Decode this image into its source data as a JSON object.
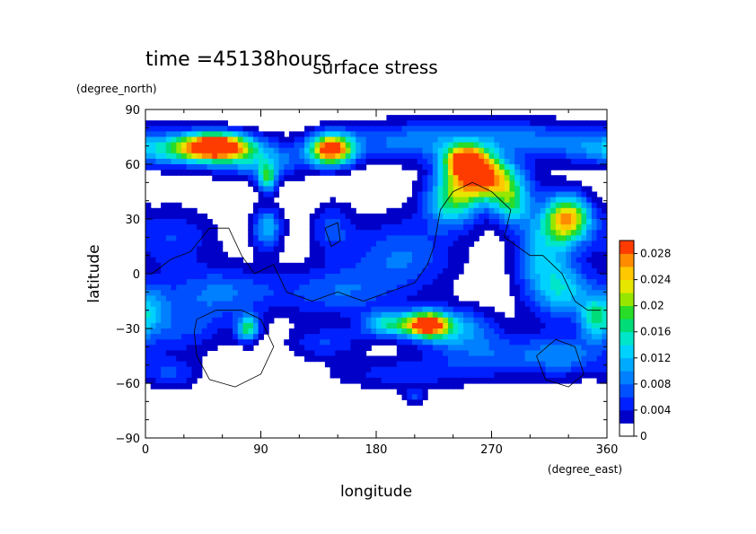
{
  "chart_data": {
    "type": "heatmap",
    "title": "surface stress",
    "time_label": "time =45138hours",
    "xlabel": "longitude",
    "ylabel": "latitude",
    "x_unit": "(degree_east)",
    "y_unit": "(degree_north)",
    "xlim": [
      0,
      360
    ],
    "ylim": [
      -90,
      90
    ],
    "x_ticks": [
      "0",
      "90",
      "180",
      "270",
      "360"
    ],
    "x_tick_values": [
      0,
      90,
      180,
      270,
      360
    ],
    "y_ticks": [
      "90",
      "60",
      "30",
      "0",
      "−30",
      "−60",
      "−90"
    ],
    "y_tick_values": [
      90,
      60,
      30,
      0,
      -30,
      -60,
      -90
    ],
    "colorbar": {
      "range": [
        0,
        0.03
      ],
      "labels": [
        "0.028",
        "0.024",
        "0.02",
        "0.016",
        "0.012",
        "0.008",
        "0.004",
        "0"
      ],
      "label_values": [
        0.028,
        0.024,
        0.02,
        0.016,
        0.012,
        0.008,
        0.004,
        0
      ],
      "levels": 15,
      "colors": [
        "#ffffff",
        "#0000c8",
        "#0020ff",
        "#0050ff",
        "#0080ff",
        "#00aaff",
        "#00d2ff",
        "#00e6c8",
        "#00dc78",
        "#28dc28",
        "#96e600",
        "#e6e600",
        "#ffc800",
        "#ff8c00",
        "#ff3c00"
      ]
    },
    "fields": [
      {
        "lon": 55,
        "lat": 70,
        "value": 0.03,
        "sx": 18,
        "sy": 5
      },
      {
        "lon": 25,
        "lat": 67,
        "value": 0.012,
        "sx": 35,
        "sy": 6
      },
      {
        "lon": 90,
        "lat": 62,
        "value": 0.01,
        "sx": 25,
        "sy": 7
      },
      {
        "lon": 145,
        "lat": 68,
        "value": 0.03,
        "sx": 12,
        "sy": 6
      },
      {
        "lon": 200,
        "lat": 72,
        "value": 0.007,
        "sx": 40,
        "sy": 8
      },
      {
        "lon": 300,
        "lat": 74,
        "value": 0.008,
        "sx": 60,
        "sy": 7
      },
      {
        "lon": 250,
        "lat": 62,
        "value": 0.026,
        "sx": 12,
        "sy": 6
      },
      {
        "lon": 265,
        "lat": 52,
        "value": 0.028,
        "sx": 18,
        "sy": 8
      },
      {
        "lon": 240,
        "lat": 40,
        "value": 0.016,
        "sx": 15,
        "sy": 10
      },
      {
        "lon": 285,
        "lat": 38,
        "value": 0.014,
        "sx": 10,
        "sy": 8
      },
      {
        "lon": 330,
        "lat": 30,
        "value": 0.024,
        "sx": 12,
        "sy": 9
      },
      {
        "lon": 310,
        "lat": 10,
        "value": 0.012,
        "sx": 15,
        "sy": 20
      },
      {
        "lon": 95,
        "lat": 52,
        "value": 0.016,
        "sx": 5,
        "sy": 5
      },
      {
        "lon": 145,
        "lat": 25,
        "value": 0.006,
        "sx": 12,
        "sy": 10
      },
      {
        "lon": 95,
        "lat": 25,
        "value": 0.012,
        "sx": 8,
        "sy": 8
      },
      {
        "lon": 20,
        "lat": 20,
        "value": 0.006,
        "sx": 25,
        "sy": 12
      },
      {
        "lon": 200,
        "lat": 10,
        "value": 0.008,
        "sx": 30,
        "sy": 15
      },
      {
        "lon": 60,
        "lat": -10,
        "value": 0.008,
        "sx": 35,
        "sy": 10
      },
      {
        "lon": 150,
        "lat": -10,
        "value": 0.007,
        "sx": 30,
        "sy": 10
      },
      {
        "lon": 220,
        "lat": -28,
        "value": 0.028,
        "sx": 12,
        "sy": 5
      },
      {
        "lon": 190,
        "lat": -28,
        "value": 0.014,
        "sx": 15,
        "sy": 5
      },
      {
        "lon": 245,
        "lat": -30,
        "value": 0.01,
        "sx": 20,
        "sy": 8
      },
      {
        "lon": 80,
        "lat": -30,
        "value": 0.016,
        "sx": 6,
        "sy": 5
      },
      {
        "lon": 30,
        "lat": -30,
        "value": 0.006,
        "sx": 25,
        "sy": 10
      },
      {
        "lon": 140,
        "lat": -38,
        "value": 0.006,
        "sx": 20,
        "sy": 6
      },
      {
        "lon": 280,
        "lat": -45,
        "value": 0.007,
        "sx": 40,
        "sy": 8
      },
      {
        "lon": 330,
        "lat": -45,
        "value": 0.006,
        "sx": 20,
        "sy": 8
      },
      {
        "lon": 200,
        "lat": -55,
        "value": 0.005,
        "sx": 40,
        "sy": 6
      },
      {
        "lon": 20,
        "lat": -55,
        "value": 0.006,
        "sx": 15,
        "sy": 6
      },
      {
        "lon": 330,
        "lat": -10,
        "value": 0.01,
        "sx": 15,
        "sy": 10
      },
      {
        "lon": 350,
        "lat": -25,
        "value": 0.012,
        "sx": 8,
        "sy": 8
      },
      {
        "lon": 5,
        "lat": -20,
        "value": 0.007,
        "sx": 10,
        "sy": 10
      },
      {
        "lon": 210,
        "lat": -67,
        "value": 0.006,
        "sx": 6,
        "sy": 3
      }
    ],
    "coastlines": [
      [
        [
          5,
          0
        ],
        [
          20,
          8
        ],
        [
          35,
          12
        ],
        [
          50,
          25
        ],
        [
          65,
          25
        ],
        [
          75,
          10
        ],
        [
          85,
          0
        ],
        [
          100,
          5
        ],
        [
          110,
          -10
        ],
        [
          130,
          -15
        ],
        [
          150,
          -10
        ],
        [
          170,
          -15
        ],
        [
          190,
          -10
        ],
        [
          210,
          -5
        ],
        [
          220,
          5
        ],
        [
          225,
          15
        ],
        [
          230,
          35
        ],
        [
          240,
          45
        ],
        [
          255,
          50
        ],
        [
          270,
          45
        ],
        [
          285,
          35
        ],
        [
          280,
          20
        ],
        [
          300,
          10
        ],
        [
          310,
          10
        ],
        [
          325,
          0
        ],
        [
          335,
          -15
        ],
        [
          345,
          -20
        ],
        [
          355,
          -20
        ]
      ],
      [
        [
          40,
          -25
        ],
        [
          55,
          -20
        ],
        [
          75,
          -20
        ],
        [
          90,
          -25
        ],
        [
          100,
          -40
        ],
        [
          90,
          -55
        ],
        [
          70,
          -62
        ],
        [
          50,
          -58
        ],
        [
          40,
          -45
        ],
        [
          38,
          -32
        ],
        [
          40,
          -25
        ]
      ],
      [
        [
          305,
          -45
        ],
        [
          320,
          -36
        ],
        [
          335,
          -40
        ],
        [
          342,
          -55
        ],
        [
          330,
          -62
        ],
        [
          312,
          -58
        ],
        [
          305,
          -45
        ]
      ],
      [
        [
          140,
          25
        ],
        [
          150,
          28
        ],
        [
          152,
          18
        ],
        [
          145,
          15
        ],
        [
          140,
          25
        ]
      ]
    ]
  }
}
